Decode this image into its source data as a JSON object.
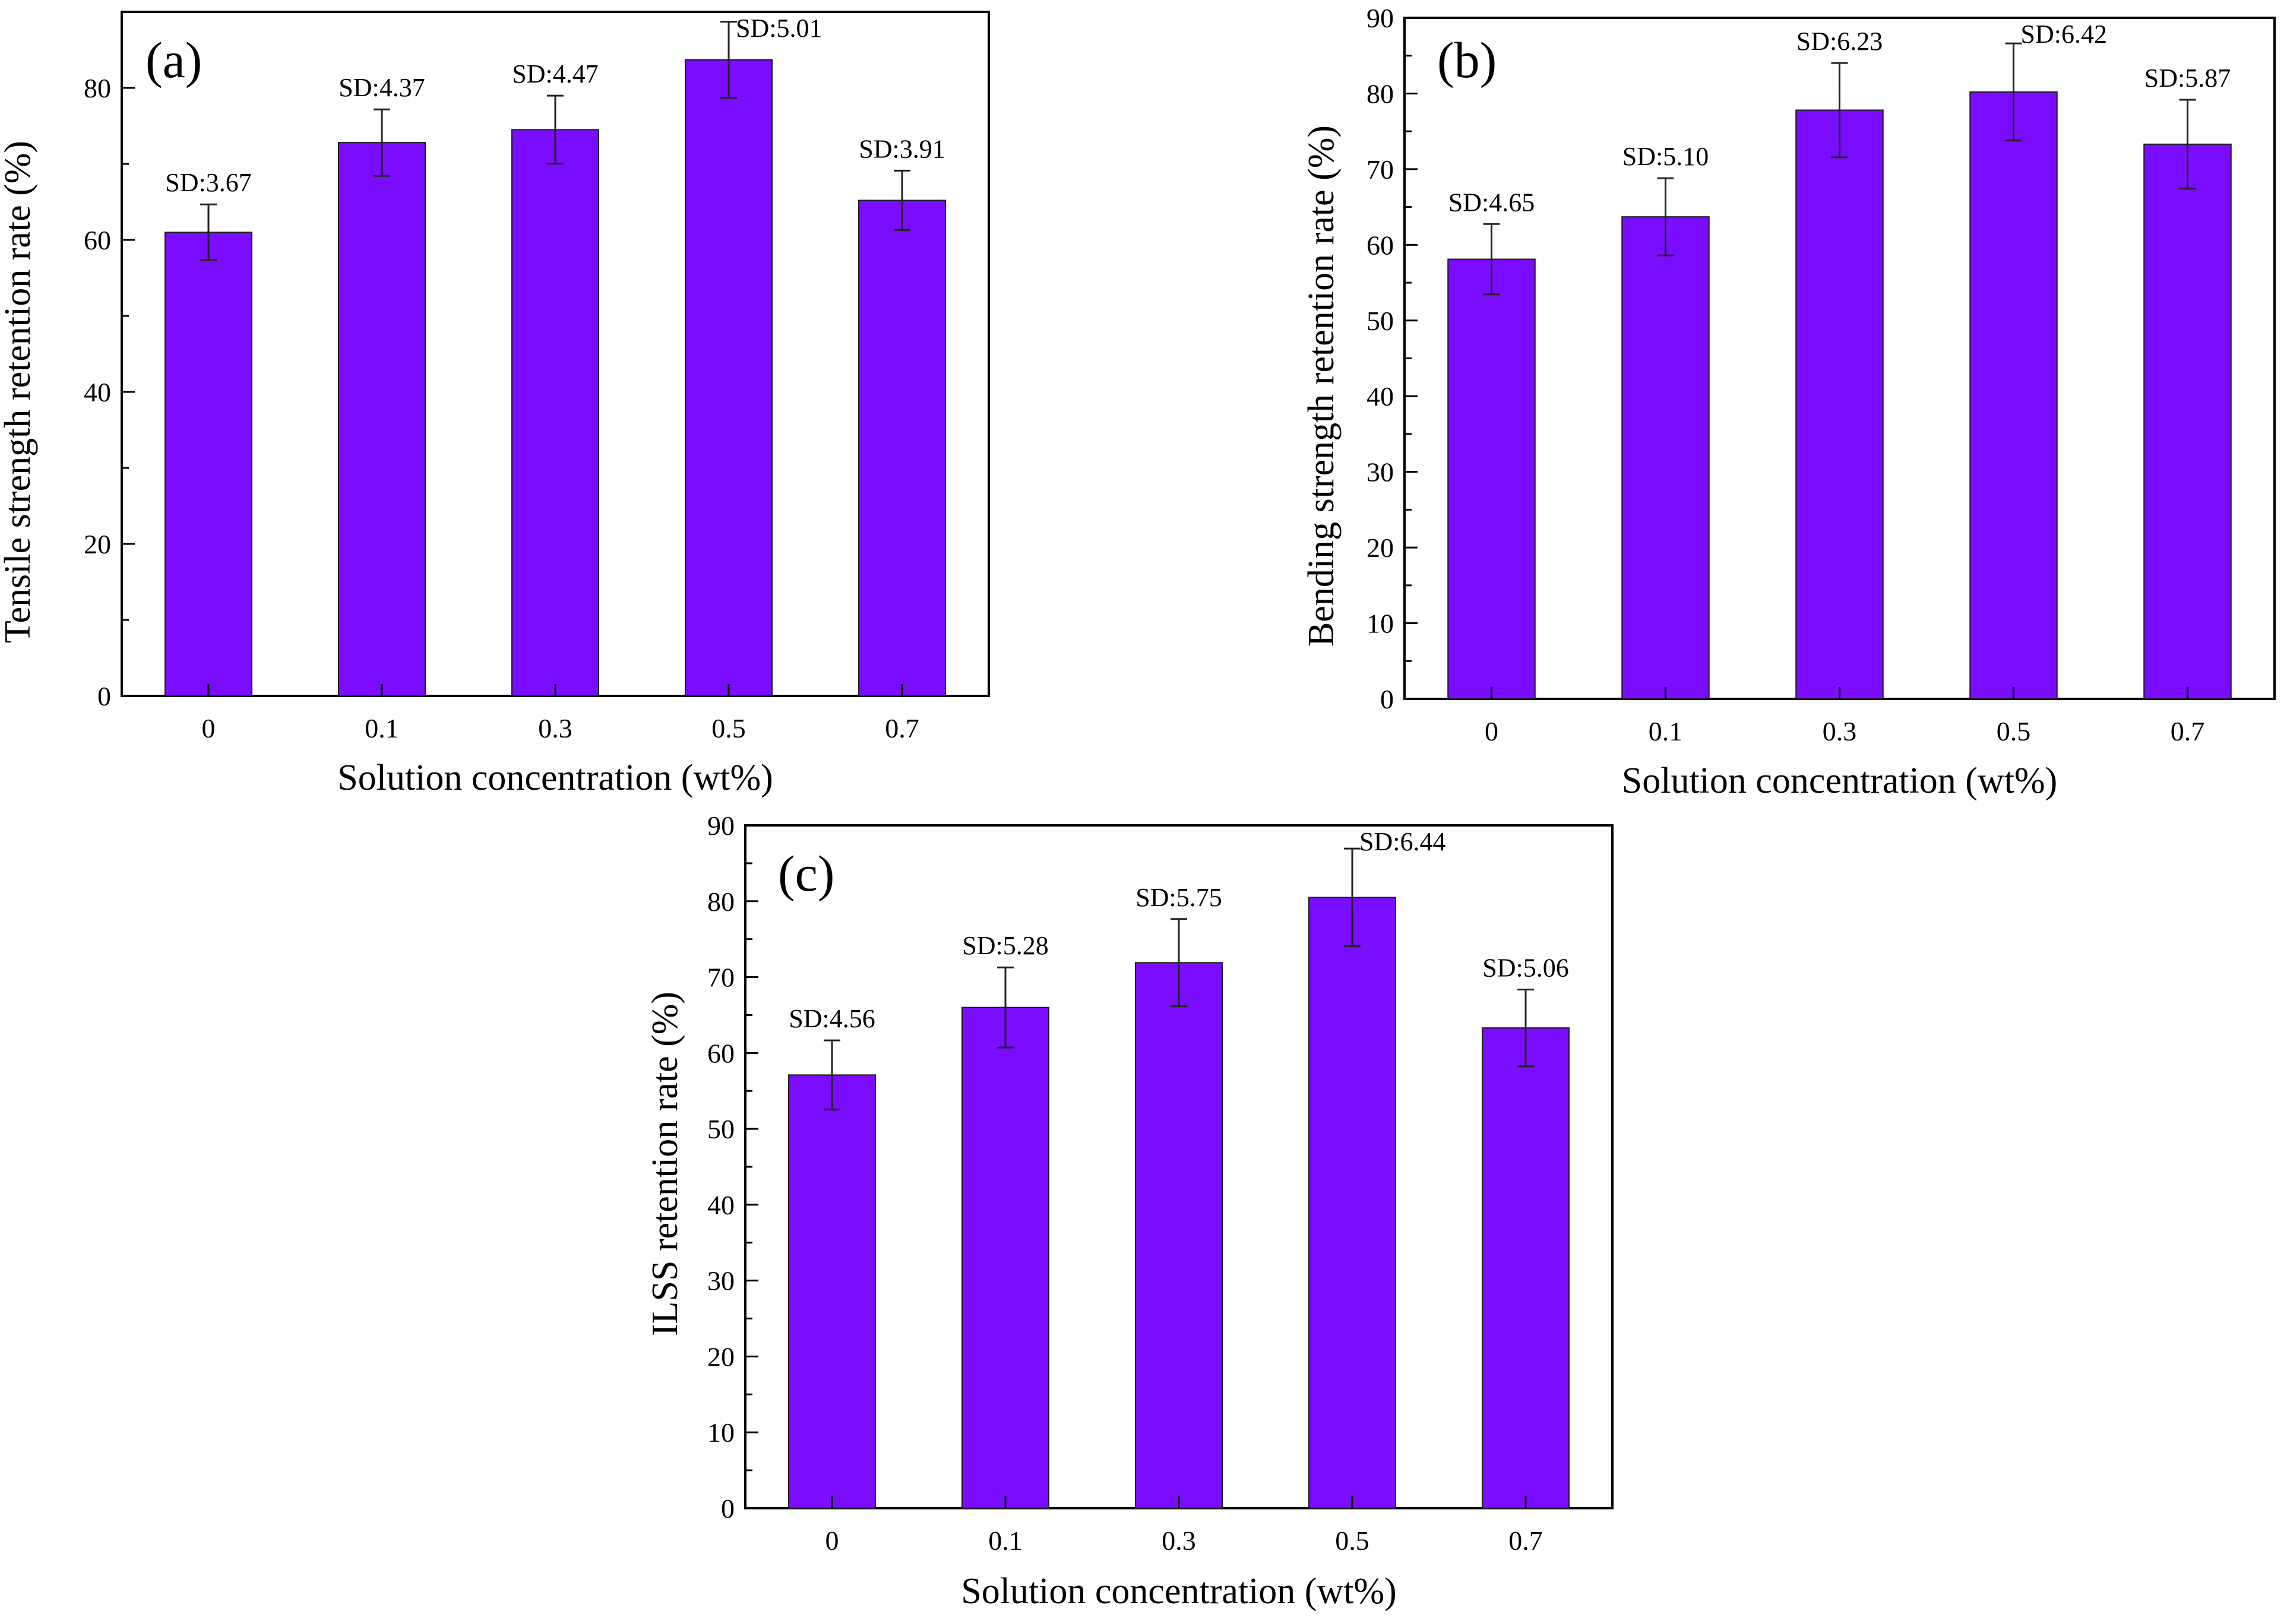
{
  "chart_data": [
    {
      "panel": "(a)",
      "type": "bar",
      "categories": [
        "0",
        "0.1",
        "0.3",
        "0.5",
        "0.7"
      ],
      "values": [
        61,
        72.8,
        74.5,
        83.7,
        65.2
      ],
      "errors": [
        3.67,
        4.37,
        4.47,
        5.01,
        3.91
      ],
      "sd_labels": [
        "SD:3.67",
        "SD:4.37",
        "SD:4.47",
        "SD:5.01",
        "SD:3.91"
      ],
      "xlabel": "Solution concentration (wt%)",
      "ylabel": "Tensile strength retention  rate (%)",
      "ylim": [
        0,
        90
      ],
      "yticks": [
        0,
        20,
        40,
        60,
        80
      ],
      "bar_color": "#7a0cff"
    },
    {
      "panel": "(b)",
      "type": "bar",
      "categories": [
        "0",
        "0.1",
        "0.3",
        "0.5",
        "0.7"
      ],
      "values": [
        58.1,
        63.7,
        77.8,
        80.2,
        73.3
      ],
      "errors": [
        4.65,
        5.1,
        6.23,
        6.42,
        5.87
      ],
      "sd_labels": [
        "SD:4.65",
        "SD:5.10",
        "SD:6.23",
        "SD:6.42",
        "SD:5.87"
      ],
      "xlabel": "Solution concentration (wt%)",
      "ylabel": "Bending strength retention rate (%)",
      "ylim": [
        0,
        90
      ],
      "yticks": [
        0,
        10,
        20,
        30,
        40,
        50,
        60,
        70,
        80,
        90
      ],
      "bar_color": "#7a0cff"
    },
    {
      "panel": "(c)",
      "type": "bar",
      "categories": [
        "0",
        "0.1",
        "0.3",
        "0.5",
        "0.7"
      ],
      "values": [
        57.1,
        66,
        71.9,
        80.5,
        63.3
      ],
      "errors": [
        4.56,
        5.28,
        5.75,
        6.44,
        5.06
      ],
      "sd_labels": [
        "SD:4.56",
        "SD:5.28",
        "SD:5.75",
        "SD:6.44",
        "SD:5.06"
      ],
      "xlabel": "Solution concentration (wt%)",
      "ylabel": "ILSS retention rate (%)",
      "ylim": [
        0,
        90
      ],
      "yticks": [
        0,
        10,
        20,
        30,
        40,
        50,
        60,
        70,
        80,
        90
      ],
      "bar_color": "#7a0cff"
    }
  ]
}
